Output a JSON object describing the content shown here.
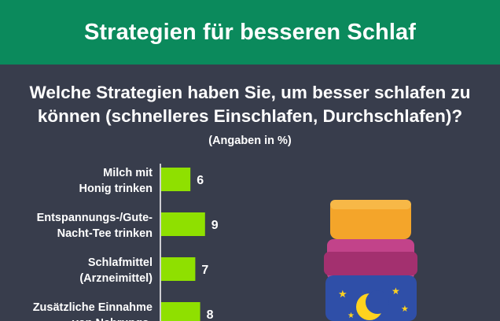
{
  "banner": {
    "title": "Strategien für besseren Schlaf"
  },
  "question": {
    "line1": "Welche Strategien haben Sie, um besser schlafen zu",
    "line2": "können (schnelleres Einschlafen, Durchschlafen)?"
  },
  "unit_note": "(Angaben in %)",
  "colors": {
    "banner": "#0b8a5c",
    "background": "#383d4c",
    "bar": "#8fe000"
  },
  "chart_data": {
    "type": "bar",
    "orientation": "horizontal",
    "title": "Welche Strategien haben Sie, um besser schlafen zu können (schnelleres Einschlafen, Durchschlafen)?",
    "subtitle": "(Angaben in %)",
    "categories": [
      [
        "Milch mit",
        "Honig trinken"
      ],
      [
        "Entspannungs-/Gute-",
        "Nacht-Tee trinken"
      ],
      [
        "Schlafmittel",
        "(Arzneimittel)"
      ],
      [
        "Zusätzliche Einnahme",
        "von Nahrungs-"
      ]
    ],
    "values": [
      6,
      9,
      7,
      8
    ],
    "grid": false,
    "legend": "none"
  },
  "illustration": {
    "name": "sleeping-pill-jar-icon"
  }
}
